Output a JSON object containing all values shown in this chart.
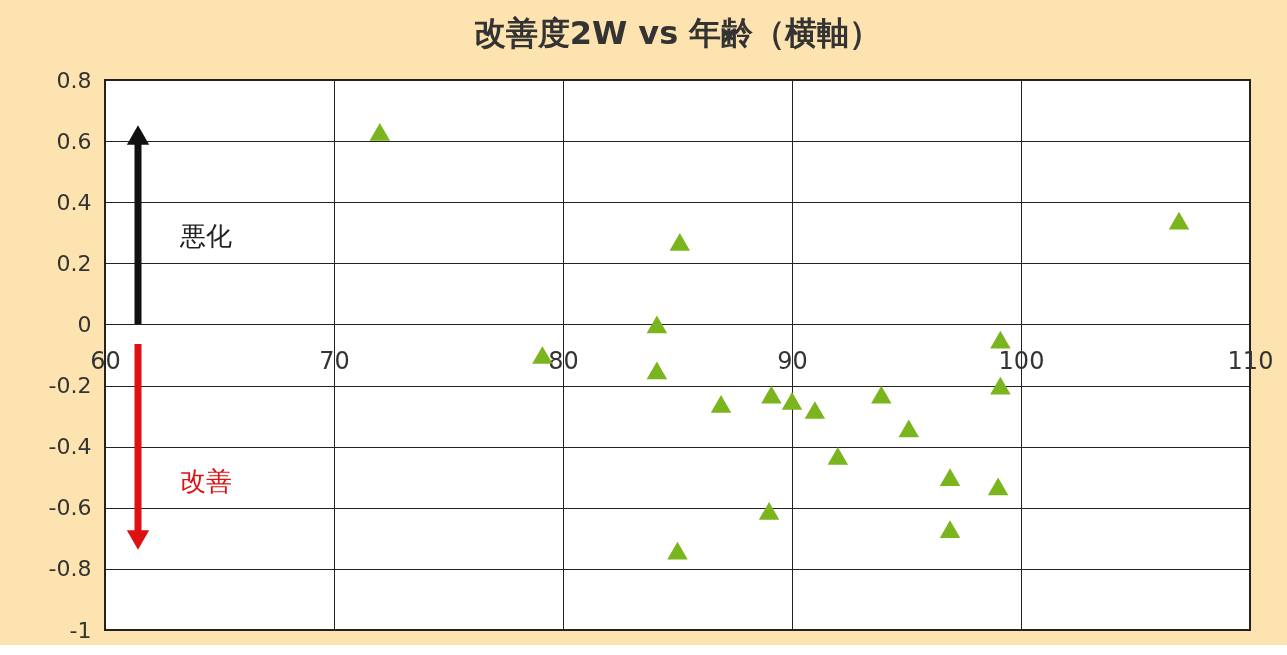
{
  "chart_data": {
    "type": "scatter",
    "title": "改善度2W vs 年齢（横軸）",
    "x": [
      72.0,
      79.1,
      84.1,
      84.1,
      85.1,
      85.0,
      86.9,
      89.1,
      89.0,
      90.0,
      91.0,
      92.0,
      93.9,
      95.1,
      96.9,
      96.9,
      99.1,
      99.1,
      99.0,
      106.9
    ],
    "series": [
      {
        "color": "#7ab51d",
        "values": [
          0.63,
          -0.1,
          0.0,
          -0.15,
          0.27,
          -0.74,
          -0.26,
          -0.23,
          -0.61,
          -0.25,
          -0.28,
          -0.43,
          -0.23,
          -0.34,
          -0.5,
          -0.67,
          -0.05,
          -0.2,
          -0.53,
          0.34
        ]
      }
    ],
    "xlim": [
      60,
      110
    ],
    "xticks": [
      60,
      70,
      80,
      90,
      100,
      110
    ],
    "ylim": [
      -1,
      0.8
    ],
    "yticks": [
      {
        "value": -1,
        "label": "-1"
      },
      -0.8,
      -0.6,
      -0.4,
      -0.2,
      {
        "value": 0,
        "label": "0"
      },
      0.2,
      0.4,
      0.6,
      0.8
    ],
    "grid": true,
    "marker": "triangle",
    "annotations": [
      "悪化",
      "改善"
    ]
  }
}
